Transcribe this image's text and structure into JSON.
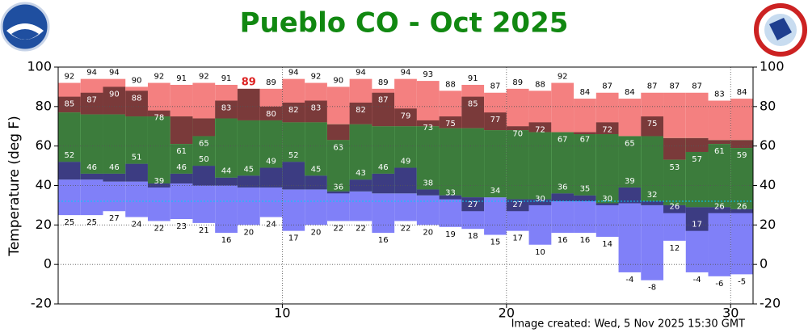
{
  "chart_data": {
    "type": "daily-temperature",
    "title": "Pueblo CO - Oct 2025",
    "y_label": "Temperature (deg F)",
    "note": "Image created: Wed, 5 Nov 2025 15:30 GMT",
    "days": [
      1,
      2,
      3,
      4,
      5,
      6,
      7,
      8,
      9,
      10,
      11,
      12,
      13,
      14,
      15,
      16,
      17,
      18,
      19,
      20,
      21,
      22,
      23,
      24,
      25,
      26,
      27,
      28,
      29,
      30,
      31
    ],
    "record_high": [
      92,
      94,
      94,
      90,
      92,
      91,
      92,
      91,
      89,
      89,
      94,
      92,
      90,
      94,
      89,
      94,
      93,
      88,
      91,
      87,
      89,
      88,
      92,
      84,
      87,
      84,
      87,
      87,
      87,
      83,
      84
    ],
    "observed_high": [
      85,
      87,
      90,
      88,
      78,
      61,
      65,
      83,
      89,
      80,
      82,
      83,
      63,
      82,
      87,
      79,
      73,
      75,
      85,
      77,
      70,
      72,
      67,
      67,
      72,
      65,
      75,
      53,
      57,
      61,
      59
    ],
    "normal_high": [
      77,
      76,
      76,
      75,
      75,
      75,
      74,
      74,
      73,
      73,
      72,
      72,
      71,
      71,
      70,
      70,
      70,
      69,
      69,
      68,
      68,
      67,
      67,
      66,
      66,
      65,
      65,
      64,
      64,
      63,
      63
    ],
    "normal_low": [
      43,
      43,
      42,
      42,
      41,
      41,
      40,
      40,
      39,
      39,
      38,
      38,
      37,
      37,
      36,
      36,
      35,
      35,
      34,
      34,
      33,
      33,
      32,
      32,
      31,
      31,
      30,
      30,
      29,
      29,
      28
    ],
    "observed_low": [
      52,
      46,
      46,
      51,
      39,
      46,
      50,
      44,
      45,
      49,
      52,
      45,
      36,
      43,
      46,
      49,
      38,
      33,
      27,
      34,
      27,
      30,
      36,
      35,
      30,
      39,
      32,
      26,
      17,
      26,
      26
    ],
    "record_low": [
      25,
      25,
      27,
      24,
      22,
      23,
      21,
      16,
      20,
      24,
      17,
      20,
      22,
      22,
      16,
      22,
      20,
      19,
      18,
      15,
      17,
      10,
      16,
      16,
      14,
      -4,
      -8,
      12,
      -4,
      -6,
      -5
    ],
    "freezing_line": 32,
    "xlim": [
      0,
      31
    ],
    "xticks": [
      10,
      20,
      30
    ],
    "ylim": [
      -20,
      100
    ],
    "yticks": [
      -20,
      0,
      20,
      40,
      60,
      80,
      100
    ],
    "grid": true,
    "colors": {
      "record_high": "#f48080",
      "normal": "#80f080",
      "record_low": "#8080f8",
      "observed_above": "#7a3a3a",
      "observed_normal": "#3c7c3c",
      "observed_below": "#3c3c82",
      "record_set": "#dd2222",
      "freezing": "#00ccff",
      "title": "#118811"
    }
  }
}
